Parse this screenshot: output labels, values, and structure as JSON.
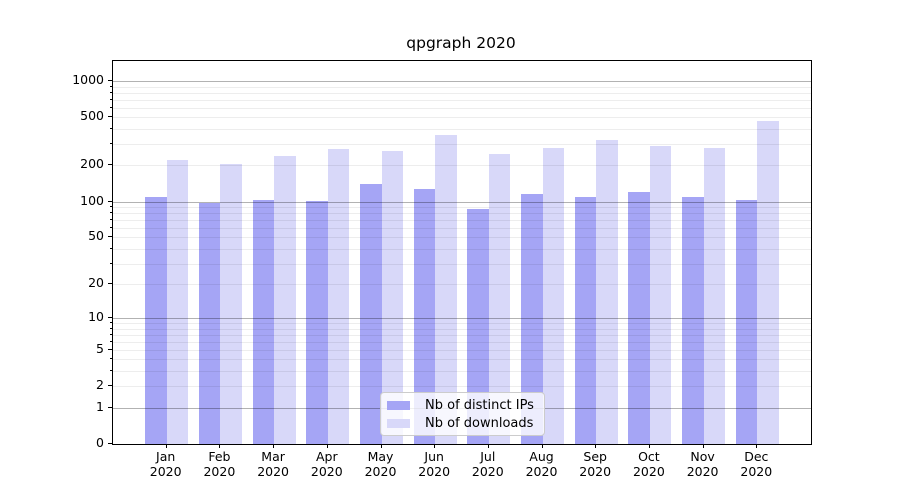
{
  "figure": {
    "title": "qpgraph 2020"
  },
  "chart_data": {
    "type": "bar",
    "title": "qpgraph 2020",
    "categories": [
      "Jan",
      "Feb",
      "Mar",
      "Apr",
      "May",
      "Jun",
      "Jul",
      "Aug",
      "Sep",
      "Oct",
      "Nov",
      "Dec"
    ],
    "category_year": "2020",
    "series": [
      {
        "name": "Nb of distinct IPs",
        "color": "#a5a5f5",
        "values": [
          110,
          98,
          103,
          101,
          140,
          126,
          87,
          115,
          109,
          120,
          110,
          102
        ]
      },
      {
        "name": "Nb of downloads",
        "color": "#d8d8f9",
        "values": [
          222,
          207,
          238,
          272,
          262,
          355,
          250,
          280,
          322,
          290,
          277,
          465
        ]
      }
    ],
    "xlabel": "",
    "ylabel": "",
    "y_axis": {
      "scale": "log1p",
      "range": [
        0,
        1460
      ],
      "ticks": [
        0,
        1,
        2,
        5,
        10,
        20,
        50,
        100,
        200,
        500,
        1000
      ],
      "major_gridlines": [
        1,
        10,
        100,
        1000
      ],
      "minor_gridlines": [
        2,
        3,
        4,
        5,
        6,
        7,
        8,
        9,
        20,
        30,
        40,
        50,
        60,
        70,
        80,
        90,
        200,
        300,
        400,
        500,
        600,
        700,
        800,
        900
      ]
    },
    "grid": true,
    "legend_position": "lower center"
  }
}
